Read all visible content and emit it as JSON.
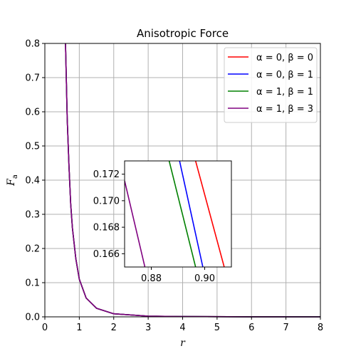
{
  "chart_data": [
    {
      "type": "line",
      "title": "Anisotropic Force",
      "xlabel": "r",
      "ylabel": "F_a",
      "xlim": [
        0,
        8
      ],
      "ylim": [
        0,
        0.8
      ],
      "x_ticks": [
        "0",
        "1",
        "2",
        "3",
        "4",
        "5",
        "6",
        "7",
        "8"
      ],
      "y_ticks": [
        "0.0",
        "0.1",
        "0.2",
        "0.3",
        "0.4",
        "0.5",
        "0.6",
        "0.7",
        "0.8"
      ],
      "grid": true,
      "legend_position": "top-right",
      "series": [
        {
          "name": "α = 0, β = 0",
          "color": "#ff0000",
          "x": [
            0.6,
            0.65,
            0.7,
            0.75,
            0.8,
            0.9,
            1.0,
            1.2,
            1.5,
            2.0,
            3.0,
            4.0,
            6.0,
            8.0
          ],
          "y": [
            0.8,
            0.58,
            0.44,
            0.33,
            0.26,
            0.17,
            0.11,
            0.055,
            0.025,
            0.009,
            0.002,
            0.0008,
            0.0002,
            0.0001
          ]
        },
        {
          "name": "α = 0, β = 1",
          "color": "#0000ff",
          "x": [
            0.6,
            0.65,
            0.7,
            0.75,
            0.8,
            0.9,
            1.0,
            1.2,
            1.5,
            2.0,
            3.0,
            4.0,
            6.0,
            8.0
          ],
          "y": [
            0.8,
            0.58,
            0.44,
            0.33,
            0.26,
            0.17,
            0.11,
            0.055,
            0.025,
            0.009,
            0.002,
            0.0008,
            0.0002,
            0.0001
          ]
        },
        {
          "name": "α = 1, β = 1",
          "color": "#008000",
          "x": [
            0.6,
            0.65,
            0.7,
            0.75,
            0.8,
            0.9,
            1.0,
            1.2,
            1.5,
            2.0,
            3.0,
            4.0,
            6.0,
            8.0
          ],
          "y": [
            0.8,
            0.58,
            0.44,
            0.33,
            0.26,
            0.17,
            0.11,
            0.055,
            0.025,
            0.009,
            0.002,
            0.0008,
            0.0002,
            0.0001
          ]
        },
        {
          "name": "α = 1, β = 3",
          "color": "#800080",
          "x": [
            0.6,
            0.65,
            0.7,
            0.75,
            0.8,
            0.9,
            1.0,
            1.2,
            1.5,
            2.0,
            3.0,
            4.0,
            6.0,
            8.0
          ],
          "y": [
            0.8,
            0.58,
            0.44,
            0.33,
            0.26,
            0.17,
            0.11,
            0.055,
            0.025,
            0.009,
            0.002,
            0.0008,
            0.0002,
            0.0001
          ]
        }
      ]
    },
    {
      "type": "line",
      "title": "",
      "xlim": [
        0.87,
        0.91
      ],
      "ylim": [
        0.165,
        0.173
      ],
      "x_ticks": [
        "0.88",
        "0.90"
      ],
      "y_ticks": [
        "0.166",
        "0.168",
        "0.170",
        "0.172"
      ],
      "grid": false,
      "series": [
        {
          "name": "α = 0, β = 0",
          "color": "#ff0000",
          "x": [
            0.8966,
            0.9073
          ],
          "y": [
            0.173,
            0.165
          ]
        },
        {
          "name": "α = 0, β = 1",
          "color": "#0000ff",
          "x": [
            0.8906,
            0.8993
          ],
          "y": [
            0.173,
            0.165
          ]
        },
        {
          "name": "α = 1, β = 1",
          "color": "#008000",
          "x": [
            0.8867,
            0.8966
          ],
          "y": [
            0.173,
            0.165
          ]
        },
        {
          "name": "α = 1, β = 3",
          "color": "#800080",
          "x": [
            0.87,
            0.8776
          ],
          "y": [
            0.1715,
            0.165
          ]
        }
      ]
    }
  ]
}
